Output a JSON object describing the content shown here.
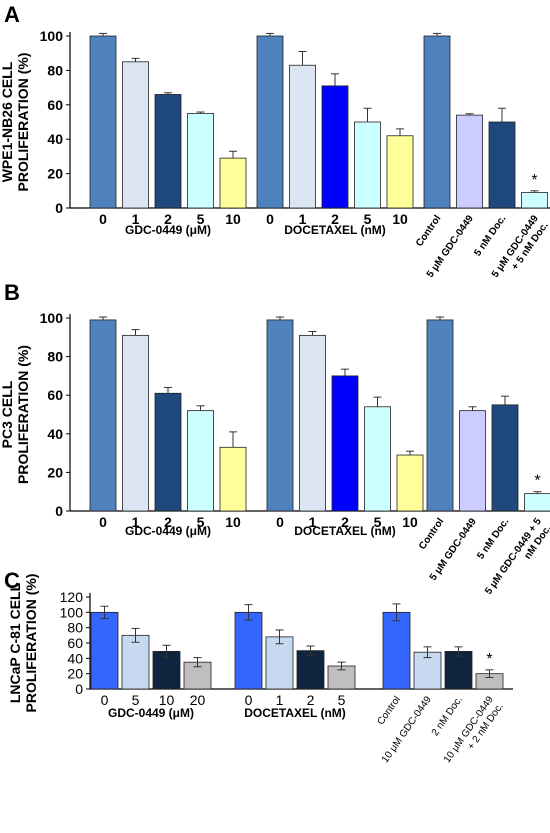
{
  "colors": {
    "blue": "#4f81bd",
    "light_blue": "#dce6f2",
    "navy": "#1f497d",
    "cyan": "#ccffff",
    "yellow": "#ffff99",
    "bright_blue": "#0000ff",
    "lavender": "#ccccff",
    "c_blue": "#3366ff",
    "c_light_blue": "#c6d9f1",
    "c_navy": "#0f243e",
    "c_gray": "#bfbfbf"
  },
  "chart_data": [
    {
      "panel_label": "A",
      "type": "bar",
      "ylabel": [
        "WPE1-NB26 CELL",
        "PROLIFERATION (%)"
      ],
      "ylim": [
        0,
        100
      ],
      "yticks": [
        0,
        20,
        40,
        60,
        80,
        100
      ],
      "groups": [
        {
          "xlabel": "GDC-0449 (μM)",
          "categories": [
            "0",
            "1",
            "2",
            "5",
            "10"
          ],
          "values": [
            100,
            85,
            66,
            55,
            29
          ],
          "errors": [
            1.5,
            2,
            1,
            0.8,
            4
          ],
          "colors": [
            "blue",
            "light_blue",
            "navy",
            "cyan",
            "yellow"
          ]
        },
        {
          "xlabel": "DOCETAXEL (nM)",
          "categories": [
            "0",
            "1",
            "2",
            "5",
            "10"
          ],
          "values": [
            100,
            83,
            71,
            50,
            42
          ],
          "errors": [
            1.5,
            8,
            7,
            8,
            4
          ],
          "colors": [
            "blue",
            "light_blue",
            "bright_blue",
            "cyan",
            "yellow"
          ]
        },
        {
          "xlabel": "",
          "categories": [
            "Control",
            "5 μM GDC-0449",
            "5 nM Doc.",
            "5 μM GDC-0449\n+ 5 nM Doc."
          ],
          "values": [
            100,
            54,
            50,
            9
          ],
          "errors": [
            1.5,
            0.8,
            8,
            1
          ],
          "colors": [
            "blue",
            "lavender",
            "navy",
            "cyan"
          ],
          "star_index": 3
        }
      ]
    },
    {
      "panel_label": "B",
      "type": "bar",
      "ylabel": [
        "PC3 CELL",
        "PROLIFERATION (%)"
      ],
      "ylim": [
        0,
        100
      ],
      "yticks": [
        0,
        20,
        40,
        60,
        80,
        100
      ],
      "groups": [
        {
          "xlabel": "GDC-0449 (μM)",
          "categories": [
            "0",
            "1",
            "2",
            "5",
            "10"
          ],
          "values": [
            99,
            91,
            61,
            52,
            33
          ],
          "errors": [
            1.5,
            3,
            3,
            2.5,
            8
          ],
          "colors": [
            "blue",
            "light_blue",
            "navy",
            "cyan",
            "yellow"
          ]
        },
        {
          "xlabel": "DOCETAXEL (nM)",
          "categories": [
            "0",
            "1",
            "2",
            "5",
            "10"
          ],
          "values": [
            99,
            91,
            70,
            54,
            29
          ],
          "errors": [
            1.5,
            2,
            3.5,
            5,
            2
          ],
          "colors": [
            "blue",
            "light_blue",
            "bright_blue",
            "cyan",
            "yellow"
          ]
        },
        {
          "xlabel": "",
          "categories": [
            "Control",
            "5 μM GDC-0449",
            "5 nM Doc.",
            "5 μM GDC-0449 + 5\nnM Doc."
          ],
          "values": [
            99,
            52,
            55,
            9
          ],
          "errors": [
            1.5,
            2,
            4.5,
            1
          ],
          "colors": [
            "blue",
            "lavender",
            "navy",
            "cyan"
          ],
          "star_index": 3
        }
      ]
    },
    {
      "panel_label": "C",
      "type": "bar",
      "ylabel": [
        "LNCaP C-81 CELL",
        "PROLIFERATION (%)"
      ],
      "ylim": [
        0,
        120
      ],
      "yticks": [
        0,
        20,
        40,
        60,
        80,
        100,
        120
      ],
      "groups": [
        {
          "xlabel": "GDC-0449 (μM)",
          "categories": [
            "0",
            "5",
            "10",
            "20"
          ],
          "values": [
            100,
            70,
            49,
            35
          ],
          "errors": [
            8,
            9,
            8,
            6
          ],
          "colors": [
            "c_blue",
            "c_light_blue",
            "c_navy",
            "c_gray"
          ]
        },
        {
          "xlabel": "DOCETAXEL (nM)",
          "categories": [
            "0",
            "1",
            "2",
            "5"
          ],
          "values": [
            100,
            68,
            50,
            30
          ],
          "errors": [
            10,
            9,
            6,
            5
          ],
          "colors": [
            "c_blue",
            "c_light_blue",
            "c_navy",
            "c_gray"
          ]
        },
        {
          "xlabel": "",
          "categories": [
            "Control",
            "10 μM GDC-0449",
            "2 nM Doc.",
            "10 μM GDC-0449\n+ 2 nM Doc."
          ],
          "values": [
            100,
            48,
            49,
            20
          ],
          "errors": [
            11,
            7,
            6,
            5
          ],
          "colors": [
            "c_blue",
            "c_light_blue",
            "c_navy",
            "c_gray"
          ],
          "star_index": 3
        }
      ]
    }
  ]
}
